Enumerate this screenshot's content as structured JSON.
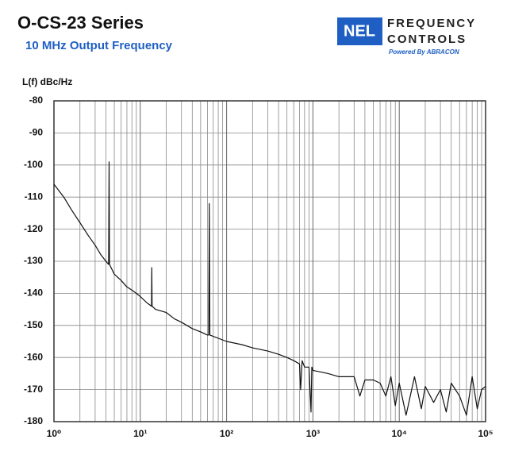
{
  "chart_data": {
    "type": "line",
    "title": "O-CS-23 Series",
    "subtitle": "10 MHz Output Frequency",
    "y_label": "L(f) dBc/Hz",
    "log_x": true,
    "grid": true,
    "minor_grid": true,
    "xlim": [
      1,
      100000
    ],
    "ylim": [
      -180,
      -80
    ],
    "xticks": [
      {
        "value": 1,
        "label": "10⁰"
      },
      {
        "value": 10,
        "label": "10¹"
      },
      {
        "value": 100,
        "label": "10²"
      },
      {
        "value": 1000,
        "label": "10³"
      },
      {
        "value": 10000,
        "label": "10⁴"
      },
      {
        "value": 100000,
        "label": "10⁵"
      }
    ],
    "yticks": [
      -80,
      -90,
      -100,
      -110,
      -120,
      -130,
      -140,
      -150,
      -160,
      -170,
      -180
    ],
    "x": [
      1,
      1.3,
      1.6,
      2,
      2.5,
      3,
      3.5,
      4,
      4.3,
      4.35,
      4.4,
      5,
      6,
      7,
      8,
      9,
      10,
      12,
      13.5,
      13.6,
      13.7,
      15,
      20,
      25,
      30,
      40,
      50,
      60,
      62,
      63,
      64,
      80,
      100,
      150,
      200,
      300,
      400,
      500,
      600,
      700,
      720,
      750,
      800,
      900,
      950,
      970,
      1000,
      1500,
      2000,
      3000,
      3500,
      4000,
      5000,
      6000,
      7000,
      8000,
      9000,
      10000,
      12000,
      15000,
      18000,
      20000,
      25000,
      30000,
      35000,
      40000,
      50000,
      60000,
      70000,
      80000,
      90000,
      100000
    ],
    "series": [
      {
        "name": "L(f)",
        "color": "#111111",
        "values": [
          -106,
          -110,
          -114,
          -118,
          -122,
          -125,
          -128,
          -130,
          -131,
          -99,
          -131,
          -134,
          -136,
          -138,
          -139,
          -140,
          -141,
          -143,
          -144,
          -132,
          -144,
          -145,
          -146,
          -148,
          -149,
          -151,
          -152,
          -153,
          -153,
          -112,
          -153,
          -154,
          -155,
          -156,
          -157,
          -158,
          -159,
          -160,
          -161,
          -162,
          -170,
          -161,
          -163,
          -163,
          -177,
          -163,
          -164,
          -165,
          -166,
          -166,
          -172,
          -167,
          -167,
          -168,
          -172,
          -166,
          -175,
          -168,
          -178,
          -166,
          -176,
          -169,
          -174,
          -170,
          -177,
          -168,
          -172,
          -178,
          -166,
          -176,
          -170,
          -169
        ]
      }
    ]
  },
  "logo": {
    "mark": "NEL",
    "line1": "FREQUENCY",
    "line2": "CONTROLS",
    "tagline": "Powered By ABRACON"
  }
}
